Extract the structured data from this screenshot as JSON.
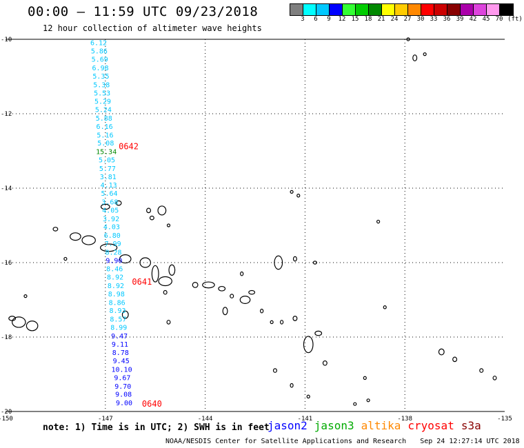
{
  "header": {
    "title": "00:00 – 11:59 UTC 09/23/2018",
    "subtitle": "12 hour collection of altimeter wave heights"
  },
  "colorbar": {
    "colors": [
      "#7f7f7f",
      "#00ffff",
      "#00c8ff",
      "#0000ff",
      "#33ff33",
      "#00cc00",
      "#008800",
      "#ffff00",
      "#ffcc00",
      "#ff8800",
      "#ff0000",
      "#cc0000",
      "#880000",
      "#aa00aa",
      "#dd44dd",
      "#ff99ee",
      "#000000"
    ],
    "ticks": [
      "3",
      "6",
      "9",
      "12",
      "15",
      "18",
      "21",
      "24",
      "27",
      "30",
      "33",
      "36",
      "39",
      "42",
      "45",
      "70",
      "(ft)"
    ]
  },
  "axes": {
    "lon_labels": [
      "-150",
      "-147",
      "-144",
      "-141",
      "-138",
      "-135"
    ],
    "lat_labels": [
      "-10",
      "-12",
      "-14",
      "-16",
      "-18",
      "-20"
    ],
    "lon_range": [
      -150,
      -135
    ],
    "lat_range": [
      -20,
      -10
    ],
    "grid": "dotted"
  },
  "track": {
    "points": [
      {
        "lat": -10.1,
        "swh": "6.12",
        "color": "#00c8ff"
      },
      {
        "lat": -10.32,
        "swh": "5.86",
        "color": "#00c8ff"
      },
      {
        "lat": -10.55,
        "swh": "5.69",
        "color": "#00c8ff"
      },
      {
        "lat": -10.78,
        "swh": "6.98",
        "color": "#00c8ff"
      },
      {
        "lat": -11.0,
        "swh": "5.35",
        "color": "#00c8ff"
      },
      {
        "lat": -11.23,
        "swh": "5.38",
        "color": "#00c8ff"
      },
      {
        "lat": -11.45,
        "swh": "5.53",
        "color": "#00c8ff"
      },
      {
        "lat": -11.68,
        "swh": "5.29",
        "color": "#00c8ff"
      },
      {
        "lat": -11.9,
        "swh": "5.24",
        "color": "#00c8ff"
      },
      {
        "lat": -12.13,
        "swh": "5.88",
        "color": "#00c8ff"
      },
      {
        "lat": -12.35,
        "swh": "6.16",
        "color": "#00c8ff"
      },
      {
        "lat": -12.58,
        "swh": "5.16",
        "color": "#00c8ff"
      },
      {
        "lat": -12.8,
        "swh": "5.08",
        "color": "#00c8ff"
      },
      {
        "lat": -13.03,
        "swh": "15.34",
        "color": "#008800"
      },
      {
        "lat": -13.25,
        "swh": "5.05",
        "color": "#00c8ff"
      },
      {
        "lat": -13.48,
        "swh": "5.77",
        "color": "#00c8ff"
      },
      {
        "lat": -13.7,
        "swh": "3.81",
        "color": "#00c8ff"
      },
      {
        "lat": -13.93,
        "swh": "4.13",
        "color": "#00c8ff"
      },
      {
        "lat": -14.15,
        "swh": "5.64",
        "color": "#00c8ff"
      },
      {
        "lat": -14.38,
        "swh": "3.68",
        "color": "#00c8ff"
      },
      {
        "lat": -14.6,
        "swh": "4.05",
        "color": "#00c8ff"
      },
      {
        "lat": -14.83,
        "swh": "3.92",
        "color": "#00c8ff"
      },
      {
        "lat": -15.05,
        "swh": "4.03",
        "color": "#00c8ff"
      },
      {
        "lat": -15.28,
        "swh": "6.80",
        "color": "#00c8ff"
      },
      {
        "lat": -15.5,
        "swh": "7.99",
        "color": "#00c8ff"
      },
      {
        "lat": -15.73,
        "swh": "8.28",
        "color": "#00c8ff"
      },
      {
        "lat": -15.95,
        "swh": "9.90",
        "color": "#0000ff"
      },
      {
        "lat": -16.18,
        "swh": "8.46",
        "color": "#00c8ff"
      },
      {
        "lat": -16.4,
        "swh": "8.92",
        "color": "#00c8ff"
      },
      {
        "lat": -16.63,
        "swh": "8.92",
        "color": "#00c8ff"
      },
      {
        "lat": -16.85,
        "swh": "8.98",
        "color": "#00c8ff"
      },
      {
        "lat": -17.08,
        "swh": "8.86",
        "color": "#00c8ff"
      },
      {
        "lat": -17.3,
        "swh": "8.93",
        "color": "#00c8ff"
      },
      {
        "lat": -17.53,
        "swh": "8.57",
        "color": "#00c8ff"
      },
      {
        "lat": -17.75,
        "swh": "8.99",
        "color": "#00c8ff"
      },
      {
        "lat": -17.98,
        "swh": "9.47",
        "color": "#0000ff"
      },
      {
        "lat": -18.2,
        "swh": "9.11",
        "color": "#0000ff"
      },
      {
        "lat": -18.43,
        "swh": "8.78",
        "color": "#0000ff"
      },
      {
        "lat": -18.65,
        "swh": "9.45",
        "color": "#0000ff"
      },
      {
        "lat": -18.88,
        "swh": "10.10",
        "color": "#0000ff"
      },
      {
        "lat": -19.1,
        "swh": "9.67",
        "color": "#0000ff"
      },
      {
        "lat": -19.33,
        "swh": "9.70",
        "color": "#0000ff"
      },
      {
        "lat": -19.55,
        "swh": "9.08",
        "color": "#0000ff"
      },
      {
        "lat": -19.78,
        "swh": "9.00",
        "color": "#0000ff"
      }
    ],
    "time_labels": [
      {
        "text": "0642",
        "lat": -12.88,
        "lon": -146.6,
        "color": "#ff0000"
      },
      {
        "text": "0641",
        "lat": -16.52,
        "lon": -146.2,
        "color": "#ff0000"
      },
      {
        "text": "0640",
        "lat": -19.8,
        "lon": -145.9,
        "color": "#ff0000"
      }
    ]
  },
  "islands": [
    {
      "lon": -149.6,
      "lat": -17.6,
      "rx": 0.2,
      "ry": 0.14
    },
    {
      "lon": -149.2,
      "lat": -17.7,
      "rx": 0.17,
      "ry": 0.13
    },
    {
      "lon": -149.8,
      "lat": -17.5,
      "rx": 0.1,
      "ry": 0.06
    },
    {
      "lon": -149.4,
      "lat": -16.9,
      "rx": 0.04,
      "ry": 0.03
    },
    {
      "lon": -147.9,
      "lat": -15.3,
      "rx": 0.16,
      "ry": 0.1
    },
    {
      "lon": -147.5,
      "lat": -15.4,
      "rx": 0.2,
      "ry": 0.12
    },
    {
      "lon": -146.9,
      "lat": -15.6,
      "rx": 0.25,
      "ry": 0.1
    },
    {
      "lon": -148.5,
      "lat": -15.1,
      "rx": 0.07,
      "ry": 0.05
    },
    {
      "lon": -148.2,
      "lat": -15.9,
      "rx": 0.04,
      "ry": 0.04
    },
    {
      "lon": -146.4,
      "lat": -15.9,
      "rx": 0.17,
      "ry": 0.11
    },
    {
      "lon": -145.8,
      "lat": -16.0,
      "rx": 0.16,
      "ry": 0.13
    },
    {
      "lon": -145.5,
      "lat": -16.3,
      "rx": 0.1,
      "ry": 0.22
    },
    {
      "lon": -145.0,
      "lat": -16.2,
      "rx": 0.09,
      "ry": 0.14
    },
    {
      "lon": -145.2,
      "lat": -16.5,
      "rx": 0.2,
      "ry": 0.12
    },
    {
      "lon": -144.3,
      "lat": -16.6,
      "rx": 0.08,
      "ry": 0.07
    },
    {
      "lon": -143.9,
      "lat": -16.6,
      "rx": 0.18,
      "ry": 0.08
    },
    {
      "lon": -143.5,
      "lat": -16.7,
      "rx": 0.1,
      "ry": 0.06
    },
    {
      "lon": -143.2,
      "lat": -16.9,
      "rx": 0.05,
      "ry": 0.05
    },
    {
      "lon": -142.9,
      "lat": -16.3,
      "rx": 0.04,
      "ry": 0.05
    },
    {
      "lon": -142.8,
      "lat": -17.0,
      "rx": 0.15,
      "ry": 0.1
    },
    {
      "lon": -142.6,
      "lat": -16.8,
      "rx": 0.09,
      "ry": 0.05
    },
    {
      "lon": -141.8,
      "lat": -16.0,
      "rx": 0.12,
      "ry": 0.18
    },
    {
      "lon": -141.3,
      "lat": -15.9,
      "rx": 0.05,
      "ry": 0.06
    },
    {
      "lon": -140.7,
      "lat": -16.0,
      "rx": 0.05,
      "ry": 0.04
    },
    {
      "lon": -145.3,
      "lat": -14.6,
      "rx": 0.12,
      "ry": 0.12
    },
    {
      "lon": -145.7,
      "lat": -14.6,
      "rx": 0.06,
      "ry": 0.06
    },
    {
      "lon": -145.6,
      "lat": -14.8,
      "rx": 0.06,
      "ry": 0.05
    },
    {
      "lon": -146.6,
      "lat": -14.4,
      "rx": 0.08,
      "ry": 0.06
    },
    {
      "lon": -147.0,
      "lat": -14.5,
      "rx": 0.13,
      "ry": 0.07
    },
    {
      "lon": -145.1,
      "lat": -15.0,
      "rx": 0.03,
      "ry": 0.03
    },
    {
      "lon": -146.4,
      "lat": -17.4,
      "rx": 0.09,
      "ry": 0.1
    },
    {
      "lon": -142.3,
      "lat": -17.3,
      "rx": 0.04,
      "ry": 0.05
    },
    {
      "lon": -142.0,
      "lat": -17.6,
      "rx": 0.04,
      "ry": 0.04
    },
    {
      "lon": -141.3,
      "lat": -17.5,
      "rx": 0.06,
      "ry": 0.06
    },
    {
      "lon": -141.7,
      "lat": -17.6,
      "rx": 0.04,
      "ry": 0.05
    },
    {
      "lon": -140.9,
      "lat": -18.2,
      "rx": 0.14,
      "ry": 0.22
    },
    {
      "lon": -140.6,
      "lat": -17.9,
      "rx": 0.1,
      "ry": 0.06
    },
    {
      "lon": -140.4,
      "lat": -18.7,
      "rx": 0.06,
      "ry": 0.06
    },
    {
      "lon": -141.4,
      "lat": -19.3,
      "rx": 0.04,
      "ry": 0.05
    },
    {
      "lon": -140.9,
      "lat": -19.6,
      "rx": 0.03,
      "ry": 0.04
    },
    {
      "lon": -141.9,
      "lat": -18.9,
      "rx": 0.05,
      "ry": 0.05
    },
    {
      "lon": -139.2,
      "lat": -19.1,
      "rx": 0.03,
      "ry": 0.04
    },
    {
      "lon": -139.1,
      "lat": -19.7,
      "rx": 0.03,
      "ry": 0.03
    },
    {
      "lon": -139.5,
      "lat": -19.8,
      "rx": 0.03,
      "ry": 0.03
    },
    {
      "lon": -138.6,
      "lat": -17.2,
      "rx": 0.04,
      "ry": 0.04
    },
    {
      "lon": -136.9,
      "lat": -18.4,
      "rx": 0.08,
      "ry": 0.08
    },
    {
      "lon": -136.5,
      "lat": -18.6,
      "rx": 0.06,
      "ry": 0.06
    },
    {
      "lon": -135.7,
      "lat": -18.9,
      "rx": 0.05,
      "ry": 0.05
    },
    {
      "lon": -135.3,
      "lat": -19.1,
      "rx": 0.05,
      "ry": 0.05
    },
    {
      "lon": -137.7,
      "lat": -10.5,
      "rx": 0.06,
      "ry": 0.08
    },
    {
      "lon": -137.4,
      "lat": -10.4,
      "rx": 0.03,
      "ry": 0.03
    },
    {
      "lon": -137.9,
      "lat": -10.0,
      "rx": 0.04,
      "ry": 0.04
    },
    {
      "lon": -141.2,
      "lat": -14.2,
      "rx": 0.04,
      "ry": 0.04
    },
    {
      "lon": -141.4,
      "lat": -14.1,
      "rx": 0.03,
      "ry": 0.03
    },
    {
      "lon": -138.8,
      "lat": -14.9,
      "rx": 0.04,
      "ry": 0.04
    },
    {
      "lon": -143.4,
      "lat": -17.3,
      "rx": 0.07,
      "ry": 0.1
    },
    {
      "lon": -145.1,
      "lat": -17.6,
      "rx": 0.05,
      "ry": 0.05
    },
    {
      "lon": -145.2,
      "lat": -16.8,
      "rx": 0.05,
      "ry": 0.05
    }
  ],
  "note": "note: 1) Time is in UTC; 2) SWH is in feet",
  "missions": [
    {
      "name": "jason2",
      "color": "#0000ff"
    },
    {
      "name": "jason3",
      "color": "#00aa00"
    },
    {
      "name": "altika",
      "color": "#ff8800"
    },
    {
      "name": "cryosat",
      "color": "#ff0000"
    },
    {
      "name": "s3a",
      "color": "#880000"
    }
  ],
  "footer": {
    "credit": "NOAA/NESDIS Center for Satellite Applications and Research",
    "timestamp": "Sep 24 12:27:14 UTC 2018"
  }
}
